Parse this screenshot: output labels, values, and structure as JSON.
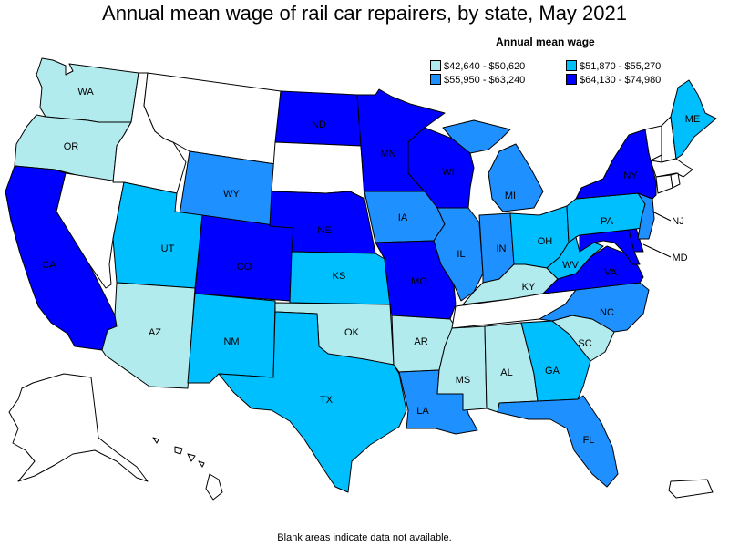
{
  "title": "Annual mean wage of rail car repairers, by state, May 2021",
  "legend": {
    "title": "Annual mean wage",
    "bins": [
      {
        "label": "$42,640 - $50,620",
        "color": "#b2ebee"
      },
      {
        "label": "$51,870 - $55,270",
        "color": "#00bfff"
      },
      {
        "label": "$55,950 - $63,240",
        "color": "#1e90ff"
      },
      {
        "label": "$64,130 - $74,980",
        "color": "#0000ff"
      }
    ]
  },
  "no_data_color": "#ffffff",
  "note": "Blank areas indicate data not available.",
  "states": {
    "WA": {
      "label": "WA",
      "bin": 0
    },
    "OR": {
      "label": "OR",
      "bin": 0
    },
    "CA": {
      "label": "CA",
      "bin": 3
    },
    "NV": {
      "label": "",
      "bin": null
    },
    "ID": {
      "label": "",
      "bin": null
    },
    "MT": {
      "label": "",
      "bin": null
    },
    "WY": {
      "label": "WY",
      "bin": 2
    },
    "UT": {
      "label": "UT",
      "bin": 1
    },
    "AZ": {
      "label": "AZ",
      "bin": 0
    },
    "CO": {
      "label": "CO",
      "bin": 3
    },
    "NM": {
      "label": "NM",
      "bin": 1
    },
    "ND": {
      "label": "ND",
      "bin": 3
    },
    "SD": {
      "label": "",
      "bin": null
    },
    "NE": {
      "label": "NE",
      "bin": 3
    },
    "KS": {
      "label": "KS",
      "bin": 1
    },
    "OK": {
      "label": "OK",
      "bin": 0
    },
    "TX": {
      "label": "TX",
      "bin": 1
    },
    "MN": {
      "label": "MN",
      "bin": 3
    },
    "IA": {
      "label": "IA",
      "bin": 2
    },
    "MO": {
      "label": "MO",
      "bin": 3
    },
    "AR": {
      "label": "AR",
      "bin": 0
    },
    "LA": {
      "label": "LA",
      "bin": 2
    },
    "WI": {
      "label": "WI",
      "bin": 3
    },
    "IL": {
      "label": "IL",
      "bin": 2
    },
    "MI": {
      "label": "MI",
      "bin": 2
    },
    "IN": {
      "label": "IN",
      "bin": 2
    },
    "OH": {
      "label": "OH",
      "bin": 1
    },
    "KY": {
      "label": "KY",
      "bin": 0
    },
    "TN": {
      "label": "",
      "bin": null
    },
    "MS": {
      "label": "MS",
      "bin": 0
    },
    "AL": {
      "label": "AL",
      "bin": 0
    },
    "GA": {
      "label": "GA",
      "bin": 1
    },
    "FL": {
      "label": "FL",
      "bin": 2
    },
    "SC": {
      "label": "SC",
      "bin": 0
    },
    "NC": {
      "label": "NC",
      "bin": 2
    },
    "VA": {
      "label": "VA",
      "bin": 3
    },
    "WV": {
      "label": "WV",
      "bin": 1
    },
    "MD": {
      "label": "MD",
      "bin": 3
    },
    "DE": {
      "label": "",
      "bin": 3
    },
    "PA": {
      "label": "PA",
      "bin": 1
    },
    "NJ": {
      "label": "NJ",
      "bin": 2
    },
    "NY": {
      "label": "NY",
      "bin": 3
    },
    "CT": {
      "label": "",
      "bin": null
    },
    "RI": {
      "label": "",
      "bin": null
    },
    "MA": {
      "label": "",
      "bin": null
    },
    "VT": {
      "label": "",
      "bin": null
    },
    "NH": {
      "label": "",
      "bin": null
    },
    "ME": {
      "label": "ME",
      "bin": 1
    },
    "AK": {
      "label": "",
      "bin": null
    },
    "HI": {
      "label": "",
      "bin": null
    },
    "PR": {
      "label": "",
      "bin": null
    }
  }
}
